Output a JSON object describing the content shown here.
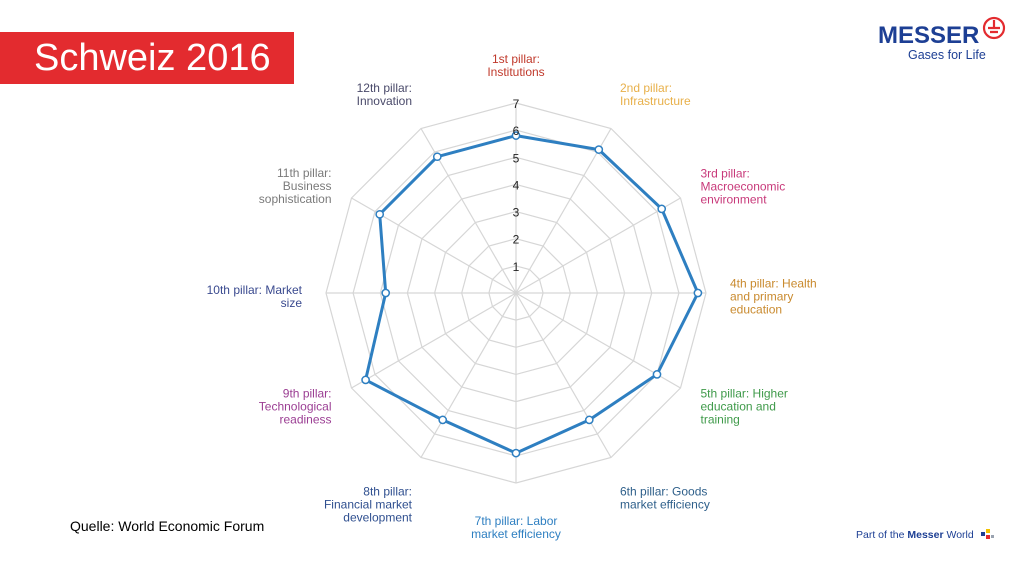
{
  "slide": {
    "title": "Schweiz 2016",
    "source": "Quelle: World Economic Forum",
    "footer_prefix": "Part of the ",
    "footer_brand": "Messer",
    "footer_suffix": " World"
  },
  "logo": {
    "word": "MESSER",
    "tagline": "Gases for Life",
    "color": "#1d3f94",
    "mark_color": "#e32b2f",
    "icon": "messer-emblem-icon"
  },
  "colors": {
    "title_bar": "#e32b2f",
    "series": "#2e7fc1",
    "grid": "#d6d6d6"
  },
  "chart_data": {
    "type": "radar",
    "title": "",
    "categories": [
      "1st pillar: Institutions",
      "2nd pillar: Infrastructure",
      "3rd pillar: Macroeconomic environment",
      "4th pillar: Health and primary education",
      "5th pillar: Higher education and training",
      "6th pillar: Goods market efficiency",
      "7th pillar: Labor market efficiency",
      "8th pillar: Financial market development",
      "9th pillar: Technological readiness",
      "10th pillar: Market size",
      "11th pillar: Business sophistication",
      "12th pillar: Innovation"
    ],
    "category_lines": [
      [
        "1st pillar:",
        "Institutions"
      ],
      [
        "2nd pillar:",
        "Infrastructure"
      ],
      [
        "3rd pillar:",
        "Macroeconomic",
        "environment"
      ],
      [
        "4th pillar: Health",
        "and primary",
        "education"
      ],
      [
        "5th pillar: Higher",
        "education and",
        "training"
      ],
      [
        "6th pillar: Goods",
        "market efficiency"
      ],
      [
        "7th pillar: Labor",
        "market efficiency"
      ],
      [
        "8th pillar:",
        "Financial market",
        "development"
      ],
      [
        "9th pillar:",
        "Technological",
        "readiness"
      ],
      [
        "10th pillar: Market",
        "size"
      ],
      [
        "11th pillar:",
        "Business",
        "sophistication"
      ],
      [
        "12th pillar:",
        "Innovation"
      ]
    ],
    "category_colors": [
      "#c0392b",
      "#e8b04a",
      "#c8397a",
      "#c98a2e",
      "#3f9a4a",
      "#2e5f8a",
      "#2e7fc1",
      "#2f4f8f",
      "#9b3e93",
      "#3a4a8f",
      "#7a7a7a",
      "#4a4a6a"
    ],
    "series": [
      {
        "values": [
          5.8,
          6.1,
          6.2,
          6.7,
          6.0,
          5.4,
          5.9,
          5.4,
          6.4,
          4.8,
          5.8,
          5.8
        ]
      }
    ],
    "ylim": [
      0,
      7
    ],
    "ticks": [
      1,
      2,
      3,
      4,
      5,
      6,
      7
    ],
    "grid": true,
    "legend": "none"
  }
}
